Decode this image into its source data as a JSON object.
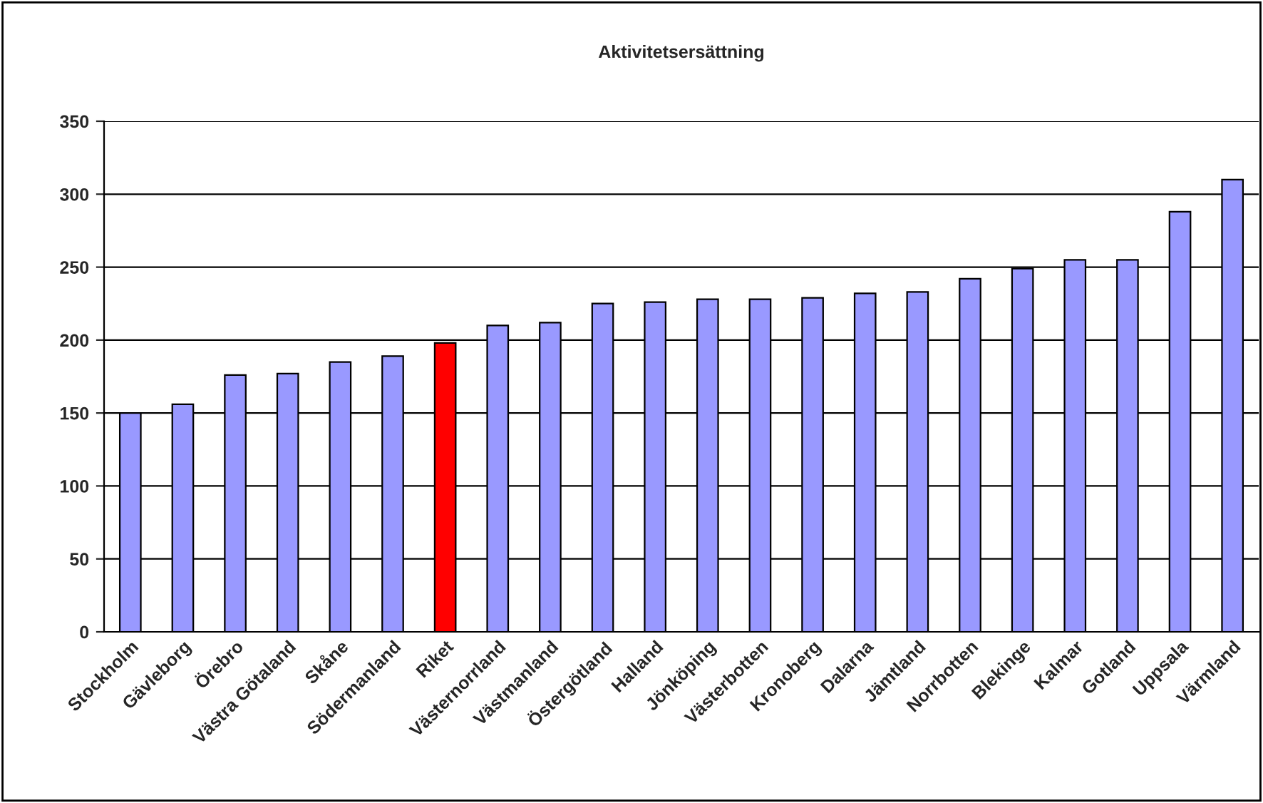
{
  "chart_data": {
    "type": "bar",
    "title": "Aktivitetsersättning",
    "categories": [
      "Stockholm",
      "Gävleborg",
      "Örebro",
      "Västra Götaland",
      "Skåne",
      "Södermanland",
      "Riket",
      "Västernorrland",
      "Västmanland",
      "Östergötland",
      "Halland",
      "Jönköping",
      "Västerbotten",
      "Kronoberg",
      "Dalarna",
      "Jämtland",
      "Norrbotten",
      "Blekinge",
      "Kalmar",
      "Gotland",
      "Uppsala",
      "Värmland"
    ],
    "values": [
      150,
      156,
      176,
      177,
      185,
      189,
      198,
      210,
      212,
      225,
      226,
      228,
      228,
      229,
      232,
      233,
      242,
      249,
      255,
      255,
      288,
      310
    ],
    "colors": [
      "#9999ff",
      "#9999ff",
      "#9999ff",
      "#9999ff",
      "#9999ff",
      "#9999ff",
      "#ff0000",
      "#9999ff",
      "#9999ff",
      "#9999ff",
      "#9999ff",
      "#9999ff",
      "#9999ff",
      "#9999ff",
      "#9999ff",
      "#9999ff",
      "#9999ff",
      "#9999ff",
      "#9999ff",
      "#9999ff",
      "#9999ff",
      "#9999ff"
    ],
    "ylim": [
      0,
      350
    ],
    "yticks": [
      0,
      50,
      100,
      150,
      200,
      250,
      300,
      350
    ],
    "grid": "y"
  }
}
